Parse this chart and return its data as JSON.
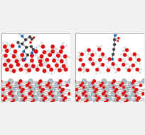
{
  "figsize": [
    2.05,
    1.89
  ],
  "dpi": 100,
  "background": "#f0f0f0",
  "panel_bg": "#ffffff",
  "colors": {
    "O_red": "#dd1111",
    "Ti_silver": "#b0bec5",
    "Ti_edge": "#78909c",
    "C_dark": "#424242",
    "N_blue": "#1565c0",
    "H_white": "#eeeeee",
    "H_edge": "#aaaaaa",
    "bond": "#909090",
    "surface_bond": "#b0b0b0"
  }
}
